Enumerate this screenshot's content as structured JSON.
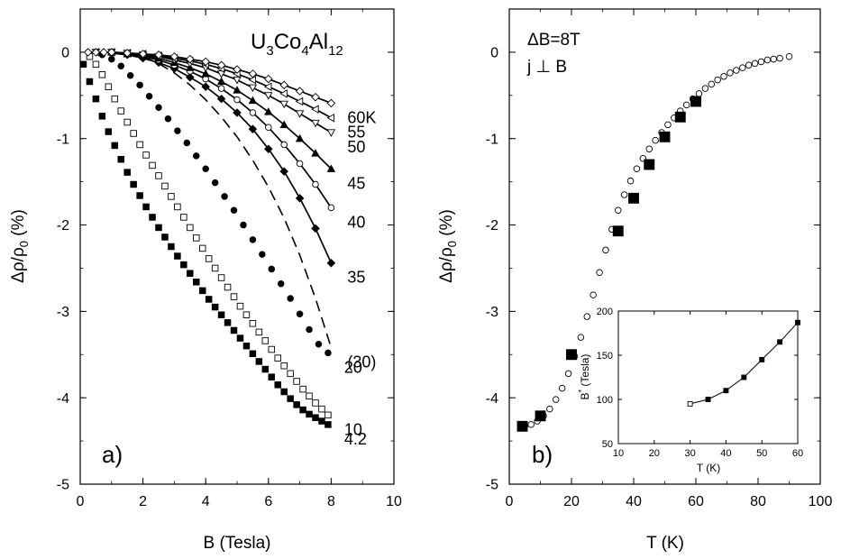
{
  "chart_data": [
    {
      "type": "scatter",
      "panel_label": "a)",
      "title": "U3Co4Al12",
      "title_parts": {
        "u": "U",
        "u_sub": "3",
        "co": "Co",
        "co_sub": "4",
        "al": "Al",
        "al_sub": "12"
      },
      "xlabel": "B (Tesla)",
      "ylabel": "Δρ/ρ0 (%)",
      "ylabel_parts": {
        "main": "Δρ/ρ",
        "sub": "0",
        "rest": " (%)"
      },
      "xlim": [
        0,
        10
      ],
      "ylim": [
        -5,
        0.5
      ],
      "xticks": [
        0,
        2,
        4,
        6,
        8,
        10
      ],
      "yticks": [
        0,
        -1,
        -2,
        -3,
        -4,
        -5
      ],
      "series": [
        {
          "name": "4.2",
          "marker": "filled-square",
          "x": [
            0.1,
            0.3,
            0.5,
            0.7,
            0.9,
            1.1,
            1.3,
            1.5,
            1.7,
            1.9,
            2.1,
            2.3,
            2.5,
            2.7,
            2.9,
            3.1,
            3.3,
            3.5,
            3.7,
            3.9,
            4.1,
            4.3,
            4.5,
            4.7,
            4.9,
            5.1,
            5.3,
            5.5,
            5.7,
            5.9,
            6.1,
            6.3,
            6.5,
            6.7,
            6.9,
            7.1,
            7.3,
            7.5,
            7.7,
            7.9
          ],
          "y": [
            -0.14,
            -0.34,
            -0.54,
            -0.74,
            -0.92,
            -1.08,
            -1.24,
            -1.39,
            -1.53,
            -1.66,
            -1.79,
            -1.91,
            -2.03,
            -2.14,
            -2.25,
            -2.36,
            -2.46,
            -2.56,
            -2.66,
            -2.76,
            -2.86,
            -2.95,
            -3.04,
            -3.13,
            -3.22,
            -3.31,
            -3.4,
            -3.49,
            -3.58,
            -3.67,
            -3.76,
            -3.85,
            -3.93,
            -4.01,
            -4.08,
            -4.14,
            -4.19,
            -4.23,
            -4.27,
            -4.31
          ]
        },
        {
          "name": "10",
          "marker": "open-square",
          "x": [
            0.3,
            0.5,
            0.7,
            0.9,
            1.1,
            1.3,
            1.5,
            1.7,
            1.9,
            2.1,
            2.3,
            2.5,
            2.7,
            2.9,
            3.1,
            3.3,
            3.5,
            3.7,
            3.9,
            4.1,
            4.3,
            4.5,
            4.7,
            4.9,
            5.1,
            5.3,
            5.5,
            5.7,
            5.9,
            6.1,
            6.3,
            6.5,
            6.7,
            6.9,
            7.1,
            7.3,
            7.5,
            7.7,
            7.9
          ],
          "y": [
            -0.05,
            -0.14,
            -0.26,
            -0.4,
            -0.54,
            -0.68,
            -0.81,
            -0.94,
            -1.07,
            -1.19,
            -1.31,
            -1.43,
            -1.55,
            -1.67,
            -1.79,
            -1.91,
            -2.03,
            -2.15,
            -2.27,
            -2.39,
            -2.5,
            -2.61,
            -2.72,
            -2.83,
            -2.94,
            -3.04,
            -3.14,
            -3.24,
            -3.34,
            -3.44,
            -3.54,
            -3.63,
            -3.72,
            -3.81,
            -3.9,
            -3.98,
            -4.06,
            -4.13,
            -4.2
          ]
        },
        {
          "name": "20",
          "marker": "filled-circle",
          "x": [
            0.7,
            1.0,
            1.3,
            1.6,
            1.9,
            2.2,
            2.5,
            2.8,
            3.1,
            3.4,
            3.7,
            4.0,
            4.3,
            4.6,
            4.9,
            5.2,
            5.5,
            5.8,
            6.1,
            6.4,
            6.7,
            7.0,
            7.3,
            7.6,
            7.9
          ],
          "y": [
            -0.03,
            -0.08,
            -0.16,
            -0.27,
            -0.38,
            -0.51,
            -0.64,
            -0.77,
            -0.91,
            -1.05,
            -1.2,
            -1.35,
            -1.51,
            -1.67,
            -1.83,
            -2.0,
            -2.17,
            -2.34,
            -2.51,
            -2.68,
            -2.85,
            -3.03,
            -3.21,
            -3.38,
            -3.48
          ]
        },
        {
          "name": "(30)",
          "marker": "dashed-line",
          "x": [
            2.0,
            2.5,
            3.0,
            3.5,
            4.0,
            4.5,
            5.0,
            5.5,
            6.0,
            6.5,
            7.0,
            7.5,
            8.0
          ],
          "y": [
            -0.05,
            -0.13,
            -0.24,
            -0.38,
            -0.55,
            -0.75,
            -0.98,
            -1.25,
            -1.56,
            -1.92,
            -2.35,
            -2.85,
            -3.42
          ]
        },
        {
          "name": "35",
          "marker": "filled-diamond",
          "fit": "solid",
          "x": [
            1.0,
            1.5,
            2.0,
            2.5,
            3.0,
            3.5,
            4.0,
            4.5,
            5.0,
            5.5,
            6.0,
            6.5,
            7.0,
            7.5,
            8.0
          ],
          "y": [
            -0.01,
            -0.03,
            -0.07,
            -0.12,
            -0.19,
            -0.29,
            -0.4,
            -0.54,
            -0.7,
            -0.89,
            -1.12,
            -1.38,
            -1.69,
            -2.04,
            -2.44
          ]
        },
        {
          "name": "40",
          "marker": "open-circle",
          "fit": "solid",
          "x": [
            1.0,
            1.5,
            2.0,
            2.5,
            3.0,
            3.5,
            4.0,
            4.5,
            5.0,
            5.5,
            6.0,
            6.5,
            7.0,
            7.5,
            8.0
          ],
          "y": [
            -0.01,
            -0.02,
            -0.05,
            -0.09,
            -0.15,
            -0.22,
            -0.31,
            -0.42,
            -0.55,
            -0.7,
            -0.87,
            -1.07,
            -1.29,
            -1.53,
            -1.8
          ]
        },
        {
          "name": "45",
          "marker": "filled-triangle",
          "fit": "solid",
          "x": [
            1.0,
            1.5,
            2.0,
            2.5,
            3.0,
            3.5,
            4.0,
            4.5,
            5.0,
            5.5,
            6.0,
            6.5,
            7.0,
            7.5,
            8.0
          ],
          "y": [
            0.0,
            -0.02,
            -0.04,
            -0.07,
            -0.12,
            -0.18,
            -0.25,
            -0.34,
            -0.44,
            -0.56,
            -0.69,
            -0.84,
            -1.0,
            -1.17,
            -1.35
          ]
        },
        {
          "name": "50",
          "marker": "open-triangle-down",
          "fit": "solid",
          "x": [
            0.5,
            1.0,
            1.5,
            2.0,
            2.5,
            3.0,
            3.5,
            4.0,
            4.5,
            5.0,
            5.5,
            6.0,
            6.5,
            7.0,
            7.5,
            8.0
          ],
          "y": [
            0.0,
            0.0,
            -0.01,
            -0.03,
            -0.05,
            -0.09,
            -0.13,
            -0.18,
            -0.25,
            -0.32,
            -0.41,
            -0.5,
            -0.6,
            -0.71,
            -0.82,
            -0.93
          ]
        },
        {
          "name": "55",
          "marker": "open-triangle-left",
          "fit": "solid",
          "x": [
            0.5,
            1.0,
            1.5,
            2.0,
            2.5,
            3.0,
            3.5,
            4.0,
            4.5,
            5.0,
            5.5,
            6.0,
            6.5,
            7.0,
            7.5,
            8.0
          ],
          "y": [
            0.0,
            0.0,
            -0.01,
            -0.02,
            -0.04,
            -0.07,
            -0.1,
            -0.14,
            -0.19,
            -0.25,
            -0.32,
            -0.4,
            -0.48,
            -0.57,
            -0.66,
            -0.76
          ]
        },
        {
          "name": "60K",
          "marker": "open-diamond",
          "fit": "solid",
          "x": [
            0.25,
            0.5,
            0.75,
            1.0,
            1.5,
            2.0,
            2.5,
            3.0,
            3.5,
            4.0,
            4.5,
            5.0,
            5.5,
            6.0,
            6.5,
            7.0,
            7.5,
            8.0
          ],
          "y": [
            0.0,
            0.0,
            0.0,
            0.0,
            -0.01,
            -0.02,
            -0.03,
            -0.05,
            -0.08,
            -0.11,
            -0.15,
            -0.2,
            -0.25,
            -0.31,
            -0.38,
            -0.45,
            -0.52,
            -0.59
          ]
        }
      ]
    },
    {
      "type": "scatter",
      "panel_label": "b)",
      "annotation_lines": [
        "ΔB=8T",
        "j ⊥ B"
      ],
      "xlabel": "T (K)",
      "ylabel": "Δρ/ρ0 (%)",
      "ylabel_parts": {
        "main": "Δρ/ρ",
        "sub": "0",
        "rest": " (%)"
      },
      "xlim": [
        0,
        100
      ],
      "ylim": [
        -5,
        0.5
      ],
      "xticks": [
        0,
        20,
        40,
        60,
        80,
        100
      ],
      "yticks": [
        0,
        -1,
        -2,
        -3,
        -4,
        -5
      ],
      "series": [
        {
          "marker": "open-circle",
          "x": [
            5,
            7,
            9,
            11,
            13,
            15,
            17,
            19,
            21,
            23,
            25,
            27,
            29,
            31,
            33,
            35,
            37,
            39,
            41,
            43,
            45,
            47,
            49,
            51,
            53,
            55,
            57,
            59,
            61,
            63,
            65,
            67,
            69,
            71,
            73,
            75,
            77,
            79,
            81,
            83,
            85,
            87,
            90
          ],
          "y": [
            -4.33,
            -4.31,
            -4.27,
            -4.21,
            -4.13,
            -4.02,
            -3.89,
            -3.72,
            -3.52,
            -3.3,
            -3.06,
            -2.81,
            -2.55,
            -2.29,
            -2.05,
            -1.83,
            -1.65,
            -1.49,
            -1.35,
            -1.23,
            -1.12,
            -1.02,
            -0.93,
            -0.84,
            -0.76,
            -0.68,
            -0.61,
            -0.54,
            -0.48,
            -0.42,
            -0.37,
            -0.32,
            -0.28,
            -0.24,
            -0.21,
            -0.18,
            -0.15,
            -0.13,
            -0.11,
            -0.09,
            -0.08,
            -0.07,
            -0.05
          ]
        },
        {
          "marker": "filled-square",
          "x": [
            4.2,
            10,
            20,
            35,
            40,
            45,
            50,
            55,
            60
          ],
          "y": [
            -4.33,
            -4.21,
            -3.5,
            -2.07,
            -1.69,
            -1.3,
            -0.98,
            -0.75,
            -0.57
          ]
        }
      ],
      "inset": {
        "type": "line",
        "xlabel": "T (K)",
        "ylabel": "B* (Tesla)",
        "ylabel_parts": {
          "main": "B",
          "sup": "*",
          "rest": " (Tesla)"
        },
        "xlim": [
          10,
          60
        ],
        "ylim": [
          50,
          200
        ],
        "xticks": [
          10,
          20,
          30,
          40,
          50,
          60
        ],
        "yticks": [
          50,
          100,
          150,
          200
        ],
        "series": [
          {
            "marker": "open-square",
            "x": [
              30
            ],
            "y": [
              95
            ]
          },
          {
            "marker": "filled-square",
            "x": [
              35,
              40,
              45,
              50,
              55,
              60
            ],
            "y": [
              100,
              110,
              125,
              145,
              165,
              187
            ]
          }
        ]
      }
    }
  ]
}
